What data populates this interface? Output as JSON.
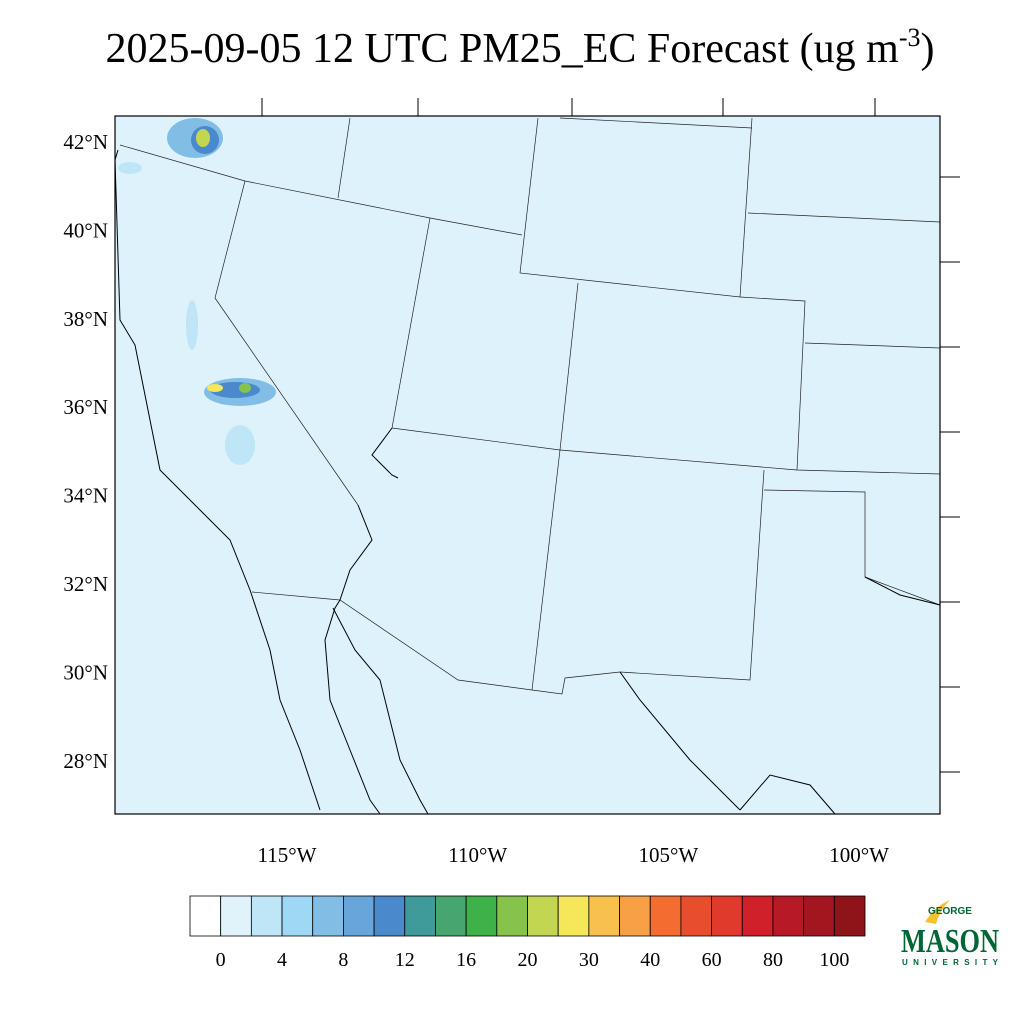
{
  "title": {
    "main": "2025-09-05 12 UTC PM25_EC Forecast (ug m",
    "superscript": "-3",
    "close": ")"
  },
  "map": {
    "latitude_labels": [
      "42°N",
      "40°N",
      "38°N",
      "36°N",
      "34°N",
      "32°N",
      "30°N",
      "28°N"
    ],
    "longitude_labels": [
      "115°W",
      "110°W",
      "105°W",
      "100°W"
    ],
    "background": "#def2fb"
  },
  "colorbar": {
    "colors": [
      "#ffffff",
      "#e0f3fb",
      "#bee6f7",
      "#9ed8f4",
      "#82bde6",
      "#67a5da",
      "#4a89cb",
      "#3f9a9a",
      "#47a66f",
      "#3fb149",
      "#86c34c",
      "#c2d652",
      "#f5e65a",
      "#f8c14d",
      "#f7a045",
      "#f56c31",
      "#e84e2e",
      "#e03a2c",
      "#d0202a",
      "#b71a26",
      "#a3161f",
      "#8f1419"
    ],
    "labels": [
      0,
      4,
      8,
      12,
      16,
      20,
      30,
      40,
      60,
      80,
      100
    ]
  },
  "logo": {
    "top": "GEORGE",
    "main": "MASON",
    "bottom": "UNIVERSITY"
  }
}
